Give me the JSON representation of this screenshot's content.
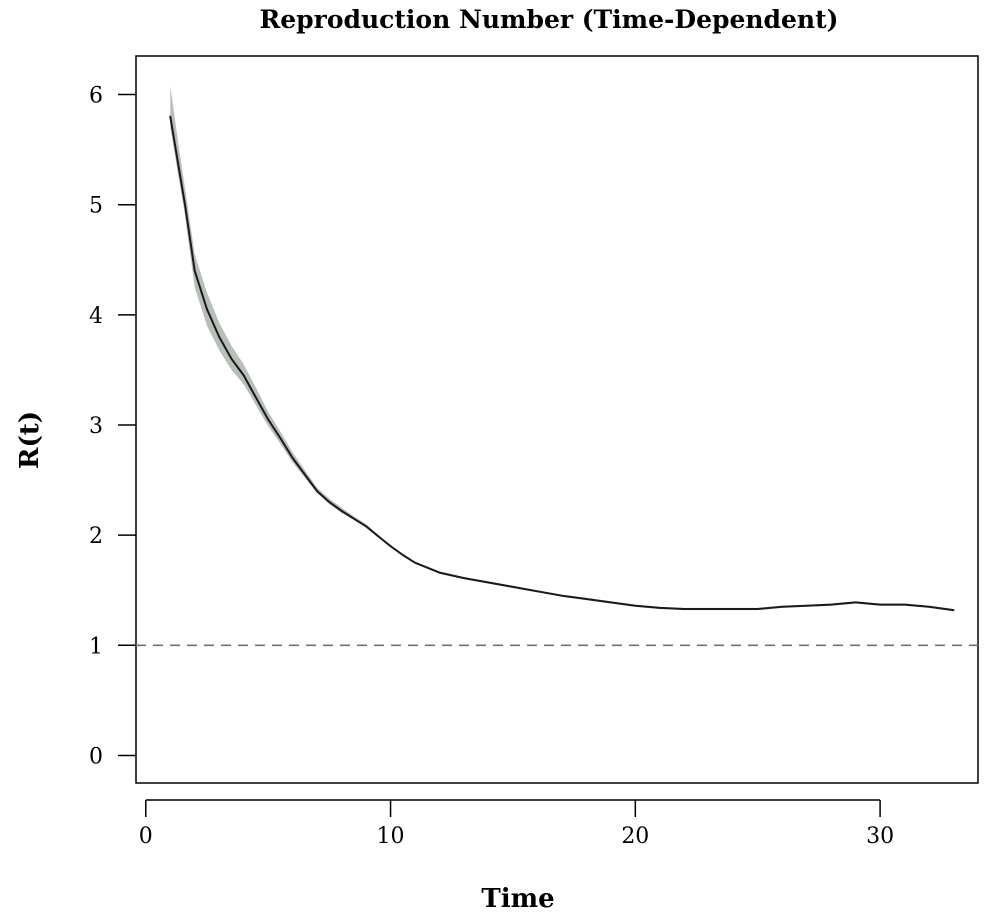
{
  "chart_data": {
    "type": "line",
    "title": "Reproduction Number (Time-Dependent)",
    "xlabel": "Time",
    "ylabel": "R(t)",
    "xlim": [
      -0.4,
      34
    ],
    "ylim": [
      -0.25,
      6.35
    ],
    "x_ticks": [
      0,
      10,
      20,
      30
    ],
    "y_ticks": [
      0,
      1,
      2,
      3,
      4,
      5,
      6
    ],
    "grid": false,
    "legend": "none",
    "reference_line": {
      "y": 1,
      "style": "dashed",
      "color": "#707070"
    },
    "series": [
      {
        "x": [
          1,
          1.3,
          1.6,
          2,
          2.5,
          3,
          3.5,
          4,
          4.5,
          5,
          5.5,
          6,
          6.5,
          7,
          7.5,
          8,
          8.5,
          9,
          9.5,
          10,
          10.5,
          11,
          12,
          13,
          14,
          15,
          16,
          17,
          18,
          19,
          20,
          21,
          22,
          23,
          24,
          25,
          26,
          27,
          28,
          29,
          30,
          31,
          32,
          33
        ],
        "y": [
          5.8,
          5.4,
          5.0,
          4.4,
          4.05,
          3.8,
          3.6,
          3.45,
          3.25,
          3.05,
          2.88,
          2.7,
          2.55,
          2.4,
          2.3,
          2.22,
          2.15,
          2.08,
          1.99,
          1.9,
          1.82,
          1.75,
          1.66,
          1.61,
          1.57,
          1.53,
          1.49,
          1.45,
          1.42,
          1.39,
          1.36,
          1.34,
          1.33,
          1.33,
          1.33,
          1.33,
          1.35,
          1.36,
          1.37,
          1.39,
          1.37,
          1.37,
          1.35,
          1.32
        ],
        "lower": [
          5.7,
          5.3,
          4.9,
          4.25,
          3.9,
          3.68,
          3.5,
          3.37,
          3.18,
          2.99,
          2.83,
          2.66,
          2.52,
          2.38,
          2.28,
          2.2,
          2.14,
          2.07,
          1.98,
          1.89,
          1.81,
          1.74,
          1.65,
          1.6,
          1.56,
          1.52,
          1.48,
          1.44,
          1.41,
          1.38,
          1.35,
          1.33,
          1.32,
          1.32,
          1.32,
          1.32,
          1.34,
          1.35,
          1.36,
          1.38,
          1.36,
          1.36,
          1.34,
          1.31
        ],
        "upper": [
          6.08,
          5.6,
          5.15,
          4.55,
          4.2,
          3.93,
          3.72,
          3.55,
          3.34,
          3.12,
          2.94,
          2.75,
          2.59,
          2.43,
          2.33,
          2.25,
          2.17,
          2.1,
          2.0,
          1.91,
          1.83,
          1.76,
          1.67,
          1.62,
          1.58,
          1.54,
          1.5,
          1.46,
          1.43,
          1.4,
          1.37,
          1.35,
          1.34,
          1.34,
          1.34,
          1.34,
          1.36,
          1.37,
          1.38,
          1.4,
          1.38,
          1.38,
          1.36,
          1.33
        ],
        "color": "#1a1a1a",
        "band_color": "#b8beb8"
      }
    ]
  }
}
